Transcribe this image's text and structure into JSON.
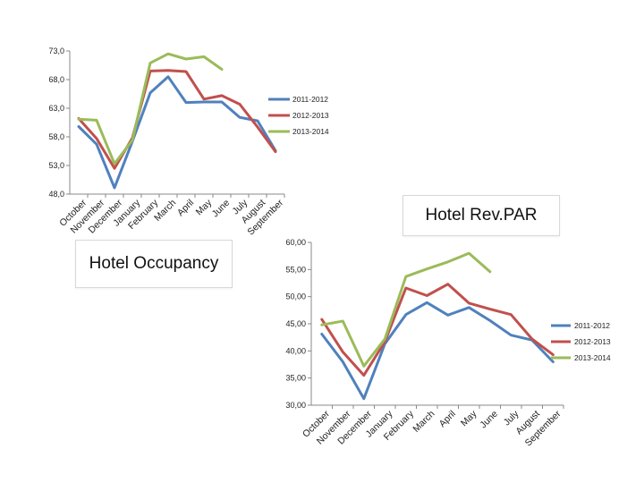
{
  "chart_data": [
    {
      "type": "line",
      "title": "Hotel Occupancy",
      "categories": [
        "October",
        "November",
        "December",
        "January",
        "February",
        "March",
        "April",
        "May",
        "June",
        "July",
        "August",
        "September"
      ],
      "yticks": [
        "73,0",
        "68,0",
        "63,0",
        "58,0",
        "53,0",
        "48,0"
      ],
      "ylim": [
        48,
        73
      ],
      "grid": false,
      "legend": "right",
      "series": [
        {
          "name": "2011-2012",
          "color": "#4f81bd",
          "values": [
            59.8,
            56.7,
            49.1,
            57.2,
            65.7,
            68.5,
            64.0,
            64.1,
            64.1,
            61.4,
            60.8,
            55.6
          ]
        },
        {
          "name": "2012-2013",
          "color": "#c0504d",
          "values": [
            61.2,
            57.7,
            52.5,
            57.8,
            69.5,
            69.6,
            69.4,
            64.6,
            65.2,
            63.7,
            59.7,
            55.4
          ]
        },
        {
          "name": "2013-2014",
          "color": "#9bbb59",
          "values": [
            61.1,
            60.9,
            53.3,
            57.4,
            70.9,
            72.5,
            71.6,
            72.0,
            69.8,
            null,
            null,
            null
          ]
        }
      ]
    },
    {
      "type": "line",
      "title": "Hotel Rev.PAR",
      "categories": [
        "October",
        "November",
        "December",
        "January",
        "February",
        "March",
        "April",
        "May",
        "June",
        "July",
        "August",
        "September"
      ],
      "yticks": [
        "60,00",
        "55,00",
        "50,00",
        "45,00",
        "40,00",
        "35,00",
        "30,00"
      ],
      "ylim": [
        30,
        60
      ],
      "grid": false,
      "legend": "right",
      "series": [
        {
          "name": "2011-2012",
          "color": "#4f81bd",
          "values": [
            43.1,
            38.0,
            31.2,
            41.3,
            46.7,
            48.9,
            46.6,
            48.0,
            45.6,
            42.9,
            42.0,
            38.0
          ]
        },
        {
          "name": "2012-2013",
          "color": "#c0504d",
          "values": [
            45.8,
            39.8,
            35.5,
            41.7,
            51.6,
            50.2,
            52.3,
            48.8,
            47.7,
            46.7,
            42.2,
            39.3
          ]
        },
        {
          "name": "2013-2014",
          "color": "#9bbb59",
          "values": [
            44.8,
            45.5,
            37.2,
            42.2,
            53.7,
            55.1,
            56.4,
            58.0,
            54.6,
            null,
            null,
            null
          ]
        }
      ]
    }
  ]
}
